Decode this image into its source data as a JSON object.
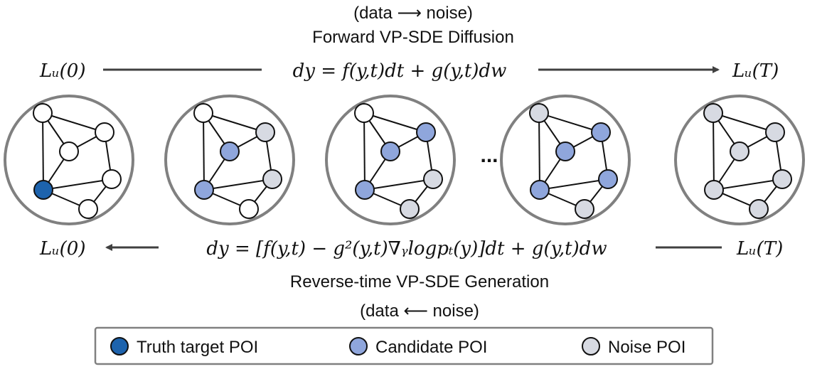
{
  "colors": {
    "truth": "#1d63ad",
    "candidate": "#8fa6dc",
    "noise": "#d7dae2",
    "clean": "#ffffff",
    "ring": "#808080",
    "arrow": "#404040"
  },
  "forward": {
    "direction": "(data ⟶ noise)",
    "title": "Forward VP-SDE Diffusion",
    "equation": "dy = f(y,t)dt + g(y,t)dw",
    "start": "Lᵤ(0)",
    "end": "Lᵤ(T)"
  },
  "reverse": {
    "direction": "(data ⟵ noise)",
    "title": "Reverse-time VP-SDE Generation",
    "equation": "dy = [f(y,t) − g²(y,t)∇ᵧlogpₜ(y)]dt + g(y,t)dw",
    "start": "Lᵤ(T)",
    "end": "Lᵤ(0)"
  },
  "ellipsis": "...",
  "graphs": [
    {
      "nodes": [
        "clean",
        "clean",
        "clean",
        "truth",
        "clean",
        "clean",
        "clean"
      ]
    },
    {
      "nodes": [
        "clean",
        "noise",
        "candidate",
        "candidate",
        "noise",
        "clean",
        "clean"
      ]
    },
    {
      "nodes": [
        "clean",
        "candidate",
        "candidate",
        "candidate",
        "noise",
        "candidate",
        "noise"
      ]
    },
    {
      "nodes": [
        "noise",
        "candidate",
        "candidate",
        "candidate",
        "candidate",
        "candidate",
        "noise"
      ]
    },
    {
      "nodes": [
        "noise",
        "noise",
        "noise",
        "noise",
        "noise",
        "noise",
        "noise"
      ]
    }
  ],
  "legend": [
    {
      "key": "truth",
      "label": "Truth target POI"
    },
    {
      "key": "candidate",
      "label": "Candidate POI"
    },
    {
      "key": "noise",
      "label": "Noise POI"
    }
  ]
}
